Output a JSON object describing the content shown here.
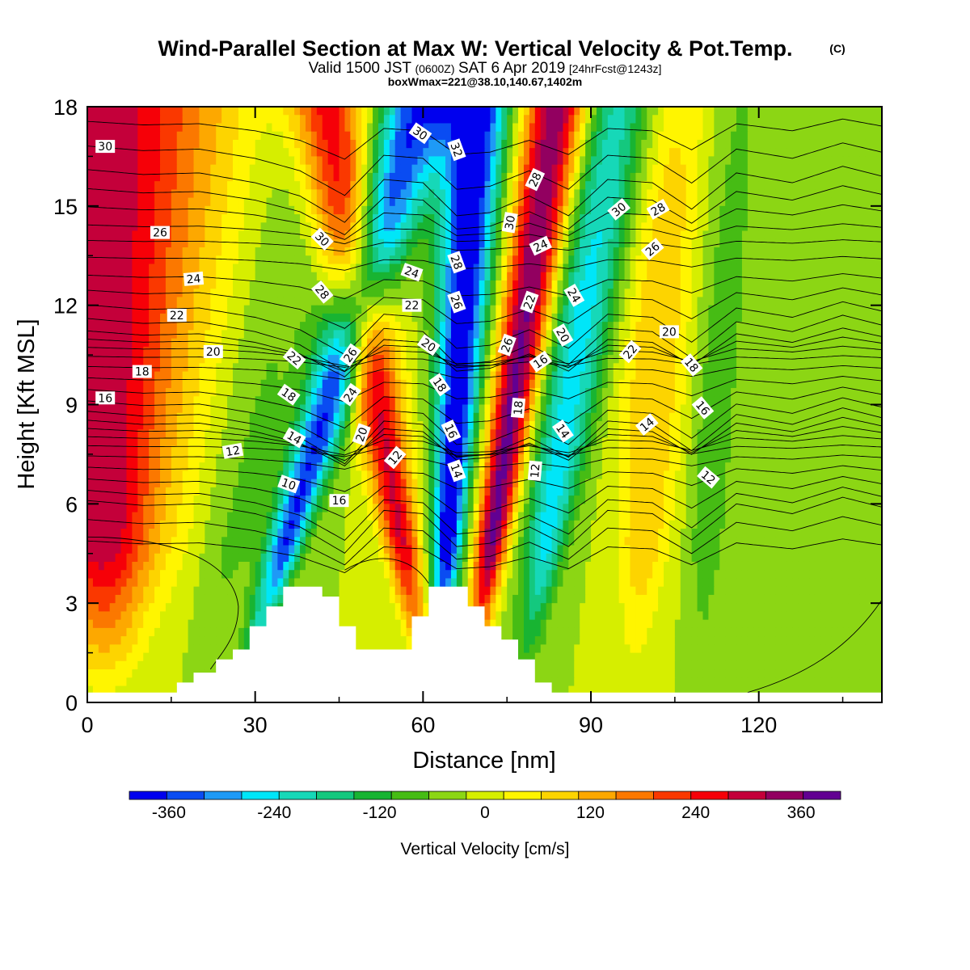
{
  "title": {
    "main": "Wind-Parallel Section at Max W: Vertical Velocity & Pot.Temp.",
    "copyright": "(C)",
    "valid_prefix": "Valid 1500 JST",
    "valid_zulu": "(0600Z)",
    "valid_date": "SAT 6 Apr 2019",
    "forecast": "[24hrFcst@1243z]",
    "boxwmax": "boxWmax=221@38.10,140.67,1402m"
  },
  "colors": {
    "levels": [
      "#0000ee",
      "#0a4cf2",
      "#1e9af6",
      "#00e6f8",
      "#16d8b8",
      "#14c87e",
      "#18b432",
      "#46bc14",
      "#8cd614",
      "#d6ee00",
      "#fff500",
      "#fdd400",
      "#fda800",
      "#fb7800",
      "#fa3800",
      "#f60008",
      "#c4003a",
      "#920060",
      "#620092"
    ],
    "zero": "#d6ee00",
    "terrain": "#ffffff",
    "contour": "#000000"
  },
  "chart_data": {
    "type": "heatmap",
    "xlabel": "Distance [nm]",
    "ylabel": "Height [Kft MSL]",
    "xlim": [
      0,
      142
    ],
    "ylim": [
      0,
      18
    ],
    "xticks": [
      "0",
      "30",
      "60",
      "90",
      "120"
    ],
    "yticks": [
      "0",
      "3",
      "6",
      "9",
      "12",
      "15",
      "18"
    ],
    "colorbar": {
      "label": "Vertical Velocity [cm/s]",
      "ticks": [
        "-360",
        "-240",
        "-120",
        "0",
        "120",
        "240",
        "360"
      ],
      "min": -405,
      "max": 405,
      "step": 45
    },
    "wave_bands": [
      {
        "x": 3,
        "w": 360,
        "amp": 12,
        "tilt": 0
      },
      {
        "x": 13,
        "w": -30,
        "amp": 6,
        "tilt": 0.4
      },
      {
        "x": 30,
        "w": -60,
        "amp": 6,
        "tilt": 1.0
      },
      {
        "x": 43,
        "w": -360,
        "amp": 3.5,
        "tilt": 1.8
      },
      {
        "x": 52,
        "w": 320,
        "amp": 3.5,
        "tilt": -1.0
      },
      {
        "x": 66,
        "w": -420,
        "amp": 3,
        "tilt": 0.4
      },
      {
        "x": 76,
        "w": 420,
        "amp": 3,
        "tilt": 0.9
      },
      {
        "x": 86,
        "w": -250,
        "amp": 4,
        "tilt": 1.0
      },
      {
        "x": 101,
        "w": 130,
        "amp": 5,
        "tilt": 0.4
      },
      {
        "x": 112,
        "w": -80,
        "amp": 3.5,
        "tilt": 0.3
      },
      {
        "x": 133,
        "w": -40,
        "amp": 5,
        "tilt": 0.2
      }
    ],
    "terrain": [
      [
        0,
        0.3
      ],
      [
        16,
        0.3
      ],
      [
        16,
        0.6
      ],
      [
        19,
        0.6
      ],
      [
        19,
        0.9
      ],
      [
        23,
        0.9
      ],
      [
        23,
        1.3
      ],
      [
        26,
        1.3
      ],
      [
        26,
        1.6
      ],
      [
        29,
        1.6
      ],
      [
        29,
        2.3
      ],
      [
        32,
        2.3
      ],
      [
        32,
        2.9
      ],
      [
        35,
        2.9
      ],
      [
        35,
        3.5
      ],
      [
        42,
        3.5
      ],
      [
        42,
        3.2
      ],
      [
        45,
        3.2
      ],
      [
        45,
        2.3
      ],
      [
        48,
        2.3
      ],
      [
        48,
        1.6
      ],
      [
        58,
        1.6
      ],
      [
        58,
        2.6
      ],
      [
        61,
        2.6
      ],
      [
        61,
        3.5
      ],
      [
        68,
        3.5
      ],
      [
        68,
        2.9
      ],
      [
        71,
        2.9
      ],
      [
        71,
        2.3
      ],
      [
        74,
        2.3
      ],
      [
        74,
        1.9
      ],
      [
        77,
        1.9
      ],
      [
        77,
        1.3
      ],
      [
        80,
        1.3
      ],
      [
        80,
        0.6
      ],
      [
        83,
        0.6
      ],
      [
        83,
        0.3
      ],
      [
        142,
        0.3
      ]
    ],
    "isentropes": {
      "ref_x": [
        0,
        10,
        20,
        30,
        38,
        46,
        53,
        60,
        66,
        72,
        79,
        86,
        93,
        101,
        108,
        116,
        126,
        135,
        142
      ],
      "ref_dz": [
        0.2,
        0.35,
        0.3,
        0.6,
        1.0,
        1.8,
        0.5,
        0.6,
        1.6,
        1.5,
        1.0,
        1.6,
        0.5,
        0.6,
        1.4,
        0.3,
        0.6,
        0.1,
        0.4
      ],
      "base_y": [
        5.0,
        5.7,
        6.3,
        6.6,
        6.9,
        7.2,
        7.5,
        7.8,
        8.1,
        8.4,
        8.7,
        9.0,
        9.3,
        9.6,
        9.9,
        10.2,
        10.5,
        10.8,
        11.1,
        11.4,
        11.8,
        12.2,
        12.6,
        13.0,
        13.5,
        14.0,
        14.5,
        15.1,
        15.7,
        16.3,
        17.0,
        17.7
      ]
    },
    "contour_labels": [
      {
        "text": "30",
        "x": 3.2,
        "y": 16.8,
        "rot": 0
      },
      {
        "text": "26",
        "x": 13,
        "y": 14.2,
        "rot": 0
      },
      {
        "text": "24",
        "x": 19,
        "y": 12.8,
        "rot": -5
      },
      {
        "text": "22",
        "x": 16,
        "y": 11.7,
        "rot": 0
      },
      {
        "text": "20",
        "x": 22.5,
        "y": 10.6,
        "rot": 0
      },
      {
        "text": "18",
        "x": 9.8,
        "y": 10.0,
        "rot": 0
      },
      {
        "text": "16",
        "x": 3.2,
        "y": 9.2,
        "rot": 0
      },
      {
        "text": "12",
        "x": 26,
        "y": 7.6,
        "rot": -10
      },
      {
        "text": "10",
        "x": 36,
        "y": 6.6,
        "rot": 20
      },
      {
        "text": "14",
        "x": 37,
        "y": 8.0,
        "rot": 30
      },
      {
        "text": "18",
        "x": 36,
        "y": 9.3,
        "rot": 35
      },
      {
        "text": "22",
        "x": 37,
        "y": 10.4,
        "rot": 40
      },
      {
        "text": "28",
        "x": 42,
        "y": 12.4,
        "rot": 50
      },
      {
        "text": "30",
        "x": 42,
        "y": 14.0,
        "rot": 45
      },
      {
        "text": "16",
        "x": 45,
        "y": 6.1,
        "rot": 0
      },
      {
        "text": "20",
        "x": 49,
        "y": 8.1,
        "rot": -70
      },
      {
        "text": "24",
        "x": 47,
        "y": 9.3,
        "rot": -55
      },
      {
        "text": "26",
        "x": 47,
        "y": 10.5,
        "rot": -55
      },
      {
        "text": "12",
        "x": 55,
        "y": 7.4,
        "rot": -50
      },
      {
        "text": "24",
        "x": 58,
        "y": 13.0,
        "rot": 20
      },
      {
        "text": "22",
        "x": 58,
        "y": 12.0,
        "rot": 0
      },
      {
        "text": "20",
        "x": 61,
        "y": 10.8,
        "rot": 35
      },
      {
        "text": "18",
        "x": 63,
        "y": 9.6,
        "rot": 55
      },
      {
        "text": "16",
        "x": 65,
        "y": 8.2,
        "rot": 65
      },
      {
        "text": "14",
        "x": 66,
        "y": 7.0,
        "rot": 70
      },
      {
        "text": "30",
        "x": 59.5,
        "y": 17.2,
        "rot": 35
      },
      {
        "text": "32",
        "x": 66,
        "y": 16.7,
        "rot": 70
      },
      {
        "text": "28",
        "x": 66,
        "y": 13.3,
        "rot": 70
      },
      {
        "text": "26",
        "x": 66,
        "y": 12.1,
        "rot": 70
      },
      {
        "text": "30",
        "x": 75.5,
        "y": 14.5,
        "rot": -80
      },
      {
        "text": "26",
        "x": 75,
        "y": 10.8,
        "rot": -70
      },
      {
        "text": "18",
        "x": 77,
        "y": 8.9,
        "rot": -85
      },
      {
        "text": "12",
        "x": 80,
        "y": 7.0,
        "rot": -85
      },
      {
        "text": "28",
        "x": 80,
        "y": 15.8,
        "rot": -65
      },
      {
        "text": "24",
        "x": 81,
        "y": 13.8,
        "rot": -25
      },
      {
        "text": "22",
        "x": 79,
        "y": 12.1,
        "rot": -70
      },
      {
        "text": "16",
        "x": 81,
        "y": 10.3,
        "rot": -35
      },
      {
        "text": "24",
        "x": 87,
        "y": 12.3,
        "rot": 60
      },
      {
        "text": "20",
        "x": 85,
        "y": 11.1,
        "rot": 60
      },
      {
        "text": "14",
        "x": 85,
        "y": 8.2,
        "rot": 55
      },
      {
        "text": "30",
        "x": 95,
        "y": 14.9,
        "rot": -40
      },
      {
        "text": "28",
        "x": 102,
        "y": 14.9,
        "rot": -30
      },
      {
        "text": "26",
        "x": 101,
        "y": 13.7,
        "rot": -40
      },
      {
        "text": "20",
        "x": 104,
        "y": 11.2,
        "rot": 0
      },
      {
        "text": "22",
        "x": 97,
        "y": 10.6,
        "rot": -50
      },
      {
        "text": "14",
        "x": 100,
        "y": 8.4,
        "rot": -40
      },
      {
        "text": "18",
        "x": 108,
        "y": 10.2,
        "rot": 50
      },
      {
        "text": "16",
        "x": 110,
        "y": 8.9,
        "rot": 50
      },
      {
        "text": "12",
        "x": 111,
        "y": 6.8,
        "rot": 40
      }
    ]
  }
}
